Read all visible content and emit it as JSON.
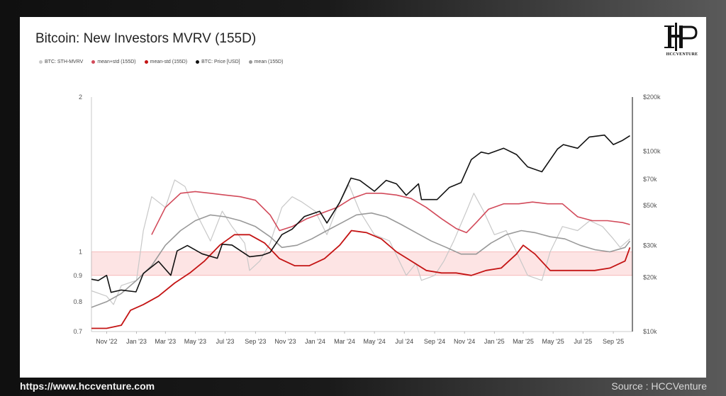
{
  "title": "Bitcoin: New Investors MVRV (155D)",
  "legend": [
    {
      "label": "BTC: STH-MVRV",
      "color": "#c8c8c8"
    },
    {
      "label": "mean+std (155D)",
      "color": "#d24a5a"
    },
    {
      "label": "mean-std (155D)",
      "color": "#c41414"
    },
    {
      "label": "BTC: Price [USD]",
      "color": "#111111"
    },
    {
      "label": "mean (155D)",
      "color": "#999999"
    }
  ],
  "logo": {
    "text": "HCCVENTURE"
  },
  "footer": {
    "url": "https://www.hccventure.com",
    "source": "Source : HCCVenture"
  },
  "colors": {
    "band_fill": "#fde4e4",
    "band_stroke": "#f4b0b0"
  },
  "chart_data": {
    "type": "line",
    "y_scale": "log",
    "ylim": [
      0.7,
      2
    ],
    "ytick_labels": [
      "2",
      "1",
      "0.9",
      "0.8",
      "0.7"
    ],
    "yticks": [
      2,
      1,
      0.9,
      0.8,
      0.7
    ],
    "y2_scale": "log",
    "y2lim": [
      10000,
      200000
    ],
    "y2tick_labels": [
      "$200k",
      "$100k",
      "$70k",
      "$50k",
      "$30k",
      "$20k",
      "$10k"
    ],
    "y2ticks": [
      200000,
      100000,
      70000,
      50000,
      30000,
      20000,
      10000
    ],
    "xlim": [
      "2022-10-01",
      "2025-10-10"
    ],
    "xtick_labels": [
      "Nov '22",
      "Jan '23",
      "Mar '23",
      "May '23",
      "Jul '23",
      "Sep '23",
      "Nov '23",
      "Jan '24",
      "Mar '24",
      "May '24",
      "Jul '24",
      "Sep '24",
      "Nov '24",
      "Jan '25",
      "Mar '25",
      "May '25",
      "Jul '25",
      "Sep '25"
    ],
    "xticks": [
      "2022-11-01",
      "2023-01-01",
      "2023-03-01",
      "2023-05-01",
      "2023-07-01",
      "2023-09-01",
      "2023-11-01",
      "2024-01-01",
      "2024-03-01",
      "2024-05-01",
      "2024-07-01",
      "2024-09-01",
      "2024-11-01",
      "2025-01-01",
      "2025-03-01",
      "2025-05-01",
      "2025-07-01",
      "2025-09-01"
    ],
    "band": {
      "from": 0.9,
      "to": 1.0
    },
    "series": [
      {
        "name": "BTC: STH-MVRV",
        "axis": "left",
        "color": "#c8c8c8",
        "x": [
          "2022-10-01",
          "2022-11-01",
          "2022-11-15",
          "2022-12-01",
          "2023-01-01",
          "2023-01-15",
          "2023-02-01",
          "2023-03-01",
          "2023-03-20",
          "2023-04-10",
          "2023-05-01",
          "2023-06-01",
          "2023-06-25",
          "2023-07-15",
          "2023-08-10",
          "2023-08-20",
          "2023-09-10",
          "2023-10-01",
          "2023-10-25",
          "2023-11-15",
          "2023-12-05",
          "2024-01-01",
          "2024-01-25",
          "2024-02-15",
          "2024-03-10",
          "2024-04-01",
          "2024-05-01",
          "2024-06-01",
          "2024-07-05",
          "2024-07-25",
          "2024-08-05",
          "2024-09-01",
          "2024-09-20",
          "2024-10-10",
          "2024-11-05",
          "2024-11-20",
          "2024-12-10",
          "2025-01-01",
          "2025-01-25",
          "2025-02-15",
          "2025-03-10",
          "2025-04-08",
          "2025-04-25",
          "2025-05-20",
          "2025-06-20",
          "2025-07-15",
          "2025-08-10",
          "2025-09-01",
          "2025-09-15",
          "2025-10-05"
        ],
        "y": [
          0.84,
          0.82,
          0.79,
          0.86,
          0.88,
          1.1,
          1.28,
          1.22,
          1.38,
          1.34,
          1.2,
          1.05,
          1.2,
          1.12,
          1.04,
          0.92,
          0.96,
          1.04,
          1.22,
          1.28,
          1.25,
          1.2,
          1.08,
          1.22,
          1.35,
          1.2,
          1.08,
          1.05,
          0.9,
          0.95,
          0.88,
          0.9,
          0.96,
          1.05,
          1.2,
          1.3,
          1.2,
          1.08,
          1.1,
          1.0,
          0.9,
          0.88,
          1.0,
          1.12,
          1.1,
          1.15,
          1.12,
          1.06,
          1.02,
          1.06
        ]
      },
      {
        "name": "mean+std (155D)",
        "axis": "left",
        "color": "#d24a5a",
        "x": [
          "2023-02-01",
          "2023-03-01",
          "2023-04-01",
          "2023-05-01",
          "2023-06-01",
          "2023-07-01",
          "2023-08-01",
          "2023-09-01",
          "2023-10-01",
          "2023-10-20",
          "2023-11-15",
          "2023-12-15",
          "2024-01-15",
          "2024-02-15",
          "2024-03-15",
          "2024-04-15",
          "2024-05-15",
          "2024-06-15",
          "2024-07-15",
          "2024-08-15",
          "2024-09-15",
          "2024-10-15",
          "2024-11-05",
          "2024-11-25",
          "2024-12-20",
          "2025-01-20",
          "2025-02-20",
          "2025-03-20",
          "2025-04-20",
          "2025-05-20",
          "2025-06-20",
          "2025-07-20",
          "2025-08-20",
          "2025-09-20",
          "2025-10-05"
        ],
        "y": [
          1.08,
          1.22,
          1.3,
          1.31,
          1.3,
          1.29,
          1.28,
          1.26,
          1.18,
          1.1,
          1.12,
          1.16,
          1.19,
          1.22,
          1.27,
          1.3,
          1.3,
          1.29,
          1.27,
          1.22,
          1.16,
          1.11,
          1.09,
          1.14,
          1.21,
          1.24,
          1.24,
          1.25,
          1.24,
          1.24,
          1.17,
          1.15,
          1.15,
          1.14,
          1.13
        ]
      },
      {
        "name": "mean-std (155D)",
        "axis": "left",
        "color": "#c41414",
        "x": [
          "2022-10-01",
          "2022-11-01",
          "2022-12-01",
          "2022-12-20",
          "2023-01-15",
          "2023-02-15",
          "2023-03-20",
          "2023-04-20",
          "2023-05-20",
          "2023-06-20",
          "2023-07-20",
          "2023-08-20",
          "2023-09-20",
          "2023-10-20",
          "2023-11-20",
          "2023-12-20",
          "2024-01-20",
          "2024-02-20",
          "2024-03-15",
          "2024-04-15",
          "2024-05-15",
          "2024-06-15",
          "2024-07-15",
          "2024-08-15",
          "2024-09-15",
          "2024-10-15",
          "2024-11-15",
          "2024-12-15",
          "2025-01-15",
          "2025-02-15",
          "2025-03-01",
          "2025-03-25",
          "2025-04-25",
          "2025-05-25",
          "2025-06-25",
          "2025-07-25",
          "2025-08-25",
          "2025-09-25",
          "2025-10-05"
        ],
        "y": [
          0.71,
          0.71,
          0.72,
          0.77,
          0.79,
          0.82,
          0.87,
          0.91,
          0.96,
          1.03,
          1.08,
          1.08,
          1.04,
          0.97,
          0.94,
          0.94,
          0.97,
          1.03,
          1.1,
          1.09,
          1.06,
          1.0,
          0.96,
          0.92,
          0.91,
          0.91,
          0.9,
          0.92,
          0.93,
          0.99,
          1.03,
          0.99,
          0.92,
          0.92,
          0.92,
          0.92,
          0.93,
          0.96,
          1.02
        ]
      },
      {
        "name": "mean (155D)",
        "axis": "left",
        "color": "#999999",
        "x": [
          "2022-10-01",
          "2022-11-01",
          "2022-12-01",
          "2023-01-01",
          "2023-02-01",
          "2023-03-01",
          "2023-04-01",
          "2023-05-01",
          "2023-06-01",
          "2023-07-01",
          "2023-08-01",
          "2023-09-01",
          "2023-10-01",
          "2023-10-25",
          "2023-11-25",
          "2023-12-25",
          "2024-01-25",
          "2024-02-25",
          "2024-03-25",
          "2024-04-25",
          "2024-05-25",
          "2024-06-25",
          "2024-07-25",
          "2024-08-25",
          "2024-09-25",
          "2024-10-25",
          "2024-11-25",
          "2024-12-25",
          "2025-01-25",
          "2025-02-25",
          "2025-03-25",
          "2025-04-25",
          "2025-05-25",
          "2025-06-25",
          "2025-07-25",
          "2025-08-25",
          "2025-09-25",
          "2025-10-05"
        ],
        "y": [
          0.78,
          0.8,
          0.83,
          0.88,
          0.94,
          1.03,
          1.1,
          1.15,
          1.18,
          1.17,
          1.15,
          1.12,
          1.07,
          1.02,
          1.03,
          1.06,
          1.1,
          1.14,
          1.18,
          1.19,
          1.17,
          1.13,
          1.09,
          1.05,
          1.02,
          0.99,
          0.99,
          1.04,
          1.08,
          1.1,
          1.09,
          1.07,
          1.06,
          1.03,
          1.01,
          1.0,
          1.02,
          1.05
        ]
      },
      {
        "name": "BTC: Price [USD]",
        "axis": "right",
        "color": "#111111",
        "x": [
          "2022-10-01",
          "2022-10-15",
          "2022-11-01",
          "2022-11-10",
          "2022-12-01",
          "2022-12-31",
          "2023-01-15",
          "2023-02-15",
          "2023-03-12",
          "2023-03-25",
          "2023-04-15",
          "2023-05-15",
          "2023-06-15",
          "2023-06-25",
          "2023-07-15",
          "2023-08-20",
          "2023-09-15",
          "2023-10-01",
          "2023-10-25",
          "2023-11-15",
          "2023-12-10",
          "2024-01-10",
          "2024-01-25",
          "2024-02-20",
          "2024-03-14",
          "2024-04-01",
          "2024-05-01",
          "2024-05-25",
          "2024-06-15",
          "2024-07-05",
          "2024-07-30",
          "2024-08-05",
          "2024-09-06",
          "2024-10-01",
          "2024-10-25",
          "2024-11-15",
          "2024-12-05",
          "2024-12-20",
          "2025-01-20",
          "2025-02-15",
          "2025-03-10",
          "2025-04-08",
          "2025-05-10",
          "2025-05-22",
          "2025-06-20",
          "2025-07-14",
          "2025-08-14",
          "2025-09-01",
          "2025-09-20",
          "2025-10-05"
        ],
        "y": [
          19500,
          19200,
          20500,
          16500,
          17000,
          16600,
          21000,
          24500,
          20500,
          28000,
          30000,
          27000,
          25500,
          30500,
          30200,
          26000,
          26500,
          27500,
          34500,
          37000,
          43500,
          46500,
          40000,
          52000,
          71000,
          69000,
          60000,
          69000,
          66000,
          57000,
          66000,
          54000,
          54000,
          63000,
          67000,
          90000,
          99000,
          97000,
          104000,
          96000,
          82000,
          77000,
          103000,
          109000,
          104000,
          120000,
          123000,
          109000,
          115000,
          122000
        ]
      }
    ]
  }
}
